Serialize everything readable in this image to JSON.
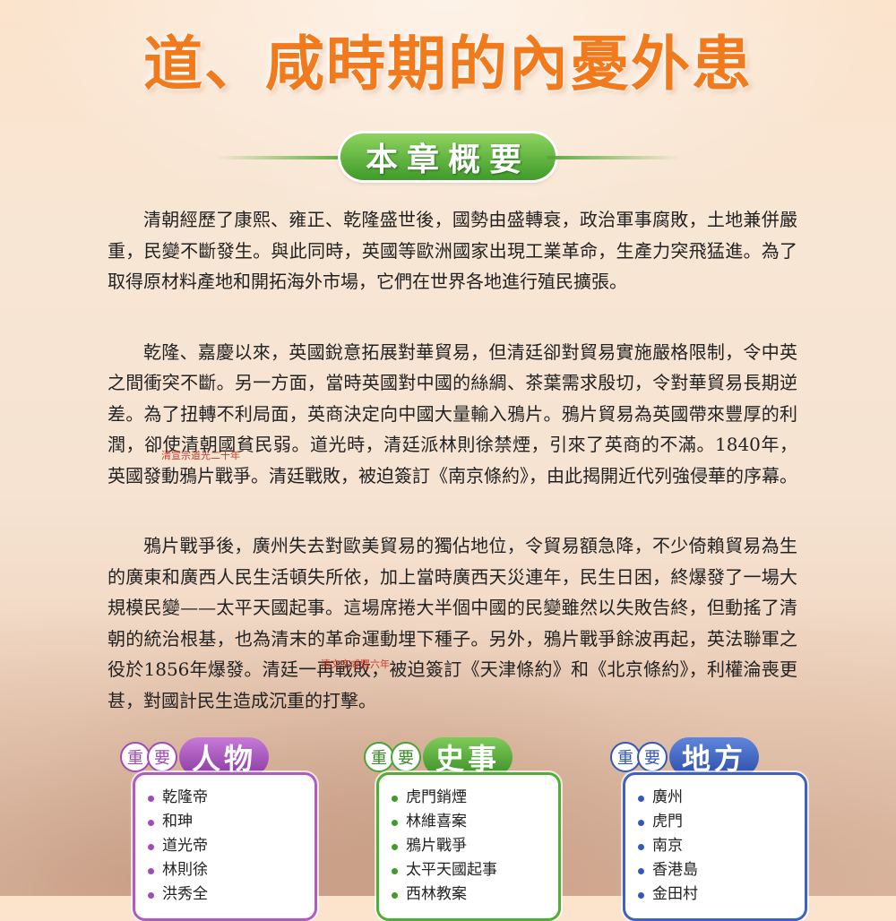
{
  "title": "道、咸時期的內憂外患",
  "subtitle": "本章概要",
  "paragraphs": [
    "清朝經歷了康熙、雍正、乾隆盛世後，國勢由盛轉衰，政治軍事腐敗，土地兼併嚴重，民變不斷發生。與此同時，英國等歐洲國家出現工業革命，生產力突飛猛進。為了取得原材料產地和開拓海外市場，它們在世界各地進行殖民擴張。",
    "乾隆、嘉慶以來，英國銳意拓展對華貿易，但清廷卻對貿易實施嚴格限制，令中英之間衝突不斷。另一方面，當時英國對中國的絲綢、茶葉需求殷切，令對華貿易長期逆差。為了扭轉不利局面，英商決定向中國大量輸入鴉片。鴉片貿易為英國帶來豐厚的利潤，卻使清朝國貧民弱。道光時，清廷派林則徐禁煙，引來了英商的不滿。1840年，英國發動鴉片戰爭。清廷戰敗，被迫簽訂《南京條約》，由此揭開近代列強侵華的序幕。",
    "鴉片戰爭後，廣州失去對歐美貿易的獨佔地位，令貿易額急降，不少倚賴貿易為生的廣東和廣西人民生活頓失所依，加上當時廣西天災連年，民生日困，終爆發了一場大規模民變——太平天國起事。這場席捲大半個中國的民變雖然以失敗告終，但動搖了清朝的統治根基，也為清末的革命運動埋下種子。另外，鴉片戰爭餘波再起，英法聯軍之役於1856年爆發。清廷一再戰敗，被迫簽訂《天津條約》和《北京條約》，利權淪喪更甚，對國計民生造成沉重的打擊。"
  ],
  "notes": {
    "note1": "清宣宗道光二十年",
    "note2": "清文宗咸豐六年"
  },
  "boxes": {
    "people": {
      "chip1": "重",
      "chip2": "要",
      "heading": "人物",
      "items": [
        "乾隆帝",
        "和珅",
        "道光帝",
        "林則徐",
        "洪秀全"
      ]
    },
    "events": {
      "chip1": "重",
      "chip2": "要",
      "heading": "史事",
      "items": [
        "虎門銷煙",
        "林維喜案",
        "鴉片戰爭",
        "太平天國起事",
        "西林教案"
      ]
    },
    "places": {
      "chip1": "重",
      "chip2": "要",
      "heading": "地方",
      "items": [
        "廣州",
        "虎門",
        "南京",
        "香港島",
        "金田村"
      ]
    }
  },
  "colors": {
    "title": "#f07a1c",
    "subtitle_badge": "#4fae36",
    "people": "#a24bb8",
    "events": "#3f9b2a",
    "places": "#3358b8"
  }
}
